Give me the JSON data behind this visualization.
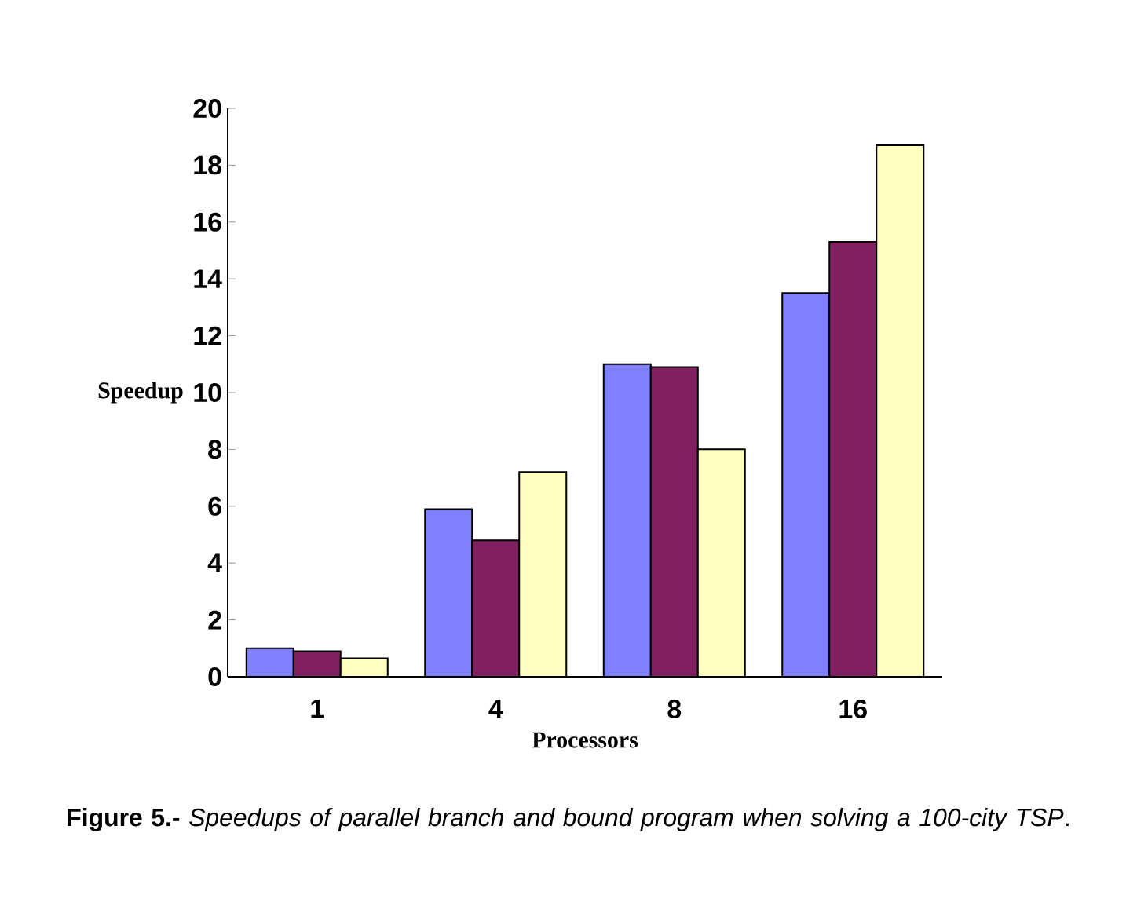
{
  "chart_data": {
    "type": "bar",
    "xlabel": "Processors",
    "ylabel": "Speedup",
    "categories": [
      "1",
      "4",
      "8",
      "16"
    ],
    "series": [
      {
        "color": "#8080ff",
        "values": [
          1.0,
          5.9,
          11.0,
          13.5
        ]
      },
      {
        "color": "#802060",
        "values": [
          0.9,
          4.8,
          10.9,
          15.3
        ]
      },
      {
        "color": "#ffffc0",
        "values": [
          0.65,
          7.2,
          8.0,
          18.7
        ]
      }
    ],
    "ylim": [
      0,
      20
    ],
    "yticks": [
      0,
      2,
      4,
      6,
      8,
      10,
      12,
      14,
      16,
      18,
      20
    ],
    "grid": false,
    "annotations": [
      "**Figure 5.-** *Speedups of parallel branch and bound program when solving a 100-city TSP*."
    ]
  }
}
